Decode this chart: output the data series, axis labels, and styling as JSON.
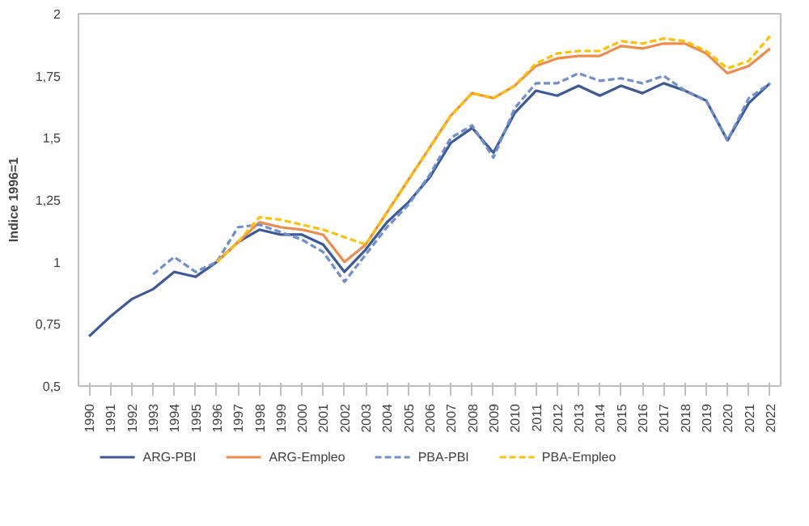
{
  "chart_data": {
    "type": "line",
    "ylabel": "Indice 1996=1",
    "categories": [
      "1990",
      "1991",
      "1992",
      "1993",
      "1994",
      "1995",
      "1996",
      "1997",
      "1998",
      "1999",
      "2000",
      "2001",
      "2002",
      "2003",
      "2004",
      "2005",
      "2006",
      "2007",
      "2008",
      "2009",
      "2010",
      "2011",
      "2012",
      "2013",
      "2014",
      "2015",
      "2016",
      "2017",
      "2018",
      "2019",
      "2020",
      "2021",
      "2022"
    ],
    "ylim": [
      0.5,
      2
    ],
    "yticks": [
      {
        "value": 0.5,
        "label": "0,5"
      },
      {
        "value": 0.75,
        "label": "0,75"
      },
      1,
      {
        "value": 1.25,
        "label": "1,25"
      },
      {
        "value": 1.5,
        "label": "1,5"
      },
      {
        "value": 1.75,
        "label": "1,75"
      },
      2
    ],
    "grid": false,
    "legend": "bottom",
    "marker": "none",
    "series": [
      {
        "name": "ARG-PBI",
        "color": "#3a5a9b",
        "line_style": "solid",
        "values": [
          0.7,
          0.78,
          0.85,
          0.89,
          0.96,
          0.94,
          1.0,
          1.08,
          1.13,
          1.11,
          1.11,
          1.07,
          0.96,
          1.05,
          1.16,
          1.24,
          1.34,
          1.48,
          1.54,
          1.44,
          1.6,
          1.69,
          1.67,
          1.71,
          1.67,
          1.71,
          1.68,
          1.72,
          1.69,
          1.65,
          1.49,
          1.64,
          1.72
        ]
      },
      {
        "name": "ARG-Empleo",
        "color": "#f08c4a",
        "line_style": "solid",
        "values": [
          null,
          null,
          null,
          null,
          null,
          null,
          1.0,
          1.08,
          1.16,
          1.14,
          1.13,
          1.11,
          1.0,
          1.07,
          1.2,
          1.33,
          1.46,
          1.59,
          1.68,
          1.66,
          1.71,
          1.79,
          1.82,
          1.83,
          1.83,
          1.87,
          1.86,
          1.88,
          1.88,
          1.84,
          1.76,
          1.79,
          1.86
        ]
      },
      {
        "name": "PBA-PBI",
        "color": "#6f8fd0",
        "line_style": "dashed",
        "values": [
          null,
          null,
          null,
          0.95,
          1.02,
          0.96,
          1.0,
          1.14,
          1.15,
          1.12,
          1.09,
          1.04,
          0.92,
          1.03,
          1.14,
          1.23,
          1.35,
          1.5,
          1.55,
          1.42,
          1.62,
          1.72,
          1.72,
          1.76,
          1.73,
          1.74,
          1.72,
          1.75,
          1.69,
          1.65,
          1.49,
          1.66,
          1.72
        ]
      },
      {
        "name": "PBA-Empleo",
        "color": "#ffc000",
        "line_style": "dashed",
        "values": [
          null,
          null,
          null,
          null,
          null,
          null,
          1.0,
          1.08,
          1.18,
          1.17,
          1.15,
          1.13,
          1.1,
          1.07,
          1.2,
          1.33,
          1.46,
          1.59,
          1.68,
          1.66,
          1.71,
          1.8,
          1.84,
          1.85,
          1.85,
          1.89,
          1.88,
          1.9,
          1.89,
          1.85,
          1.78,
          1.81,
          1.91
        ]
      }
    ]
  }
}
